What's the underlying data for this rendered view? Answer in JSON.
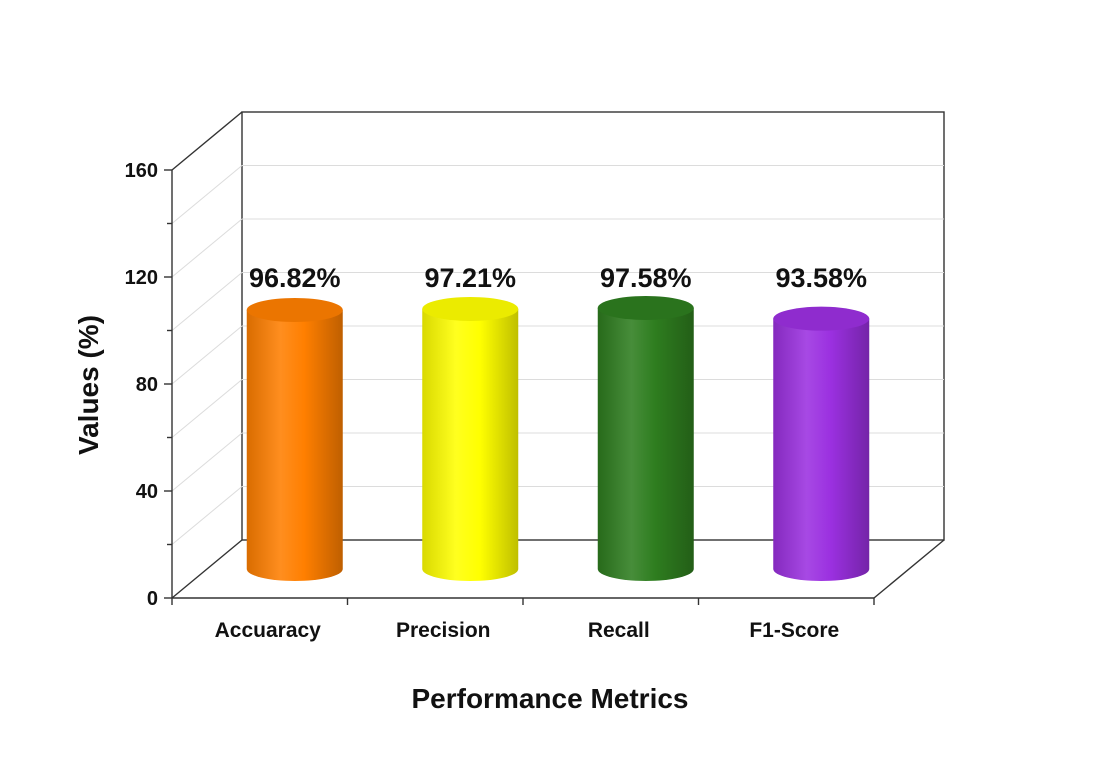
{
  "chart_data": {
    "type": "bar",
    "style": "3d-cylinder",
    "title": "",
    "xlabel": "Performance Metrics",
    "ylabel": "Values (%)",
    "ylim": [
      0,
      160
    ],
    "yticks": [
      0,
      40,
      80,
      120,
      160
    ],
    "grid": true,
    "categories": [
      "Accuaracy",
      "Precision",
      "Recall",
      "F1-Score"
    ],
    "series": [
      {
        "values": [
          96.82,
          97.21,
          97.58,
          93.58
        ],
        "data_labels": [
          "96.82%",
          "97.21%",
          "97.58%",
          "93.58%"
        ],
        "colors": [
          "#ff7f00",
          "#ffff00",
          "#2e7d1f",
          "#9b30e0"
        ]
      }
    ]
  }
}
